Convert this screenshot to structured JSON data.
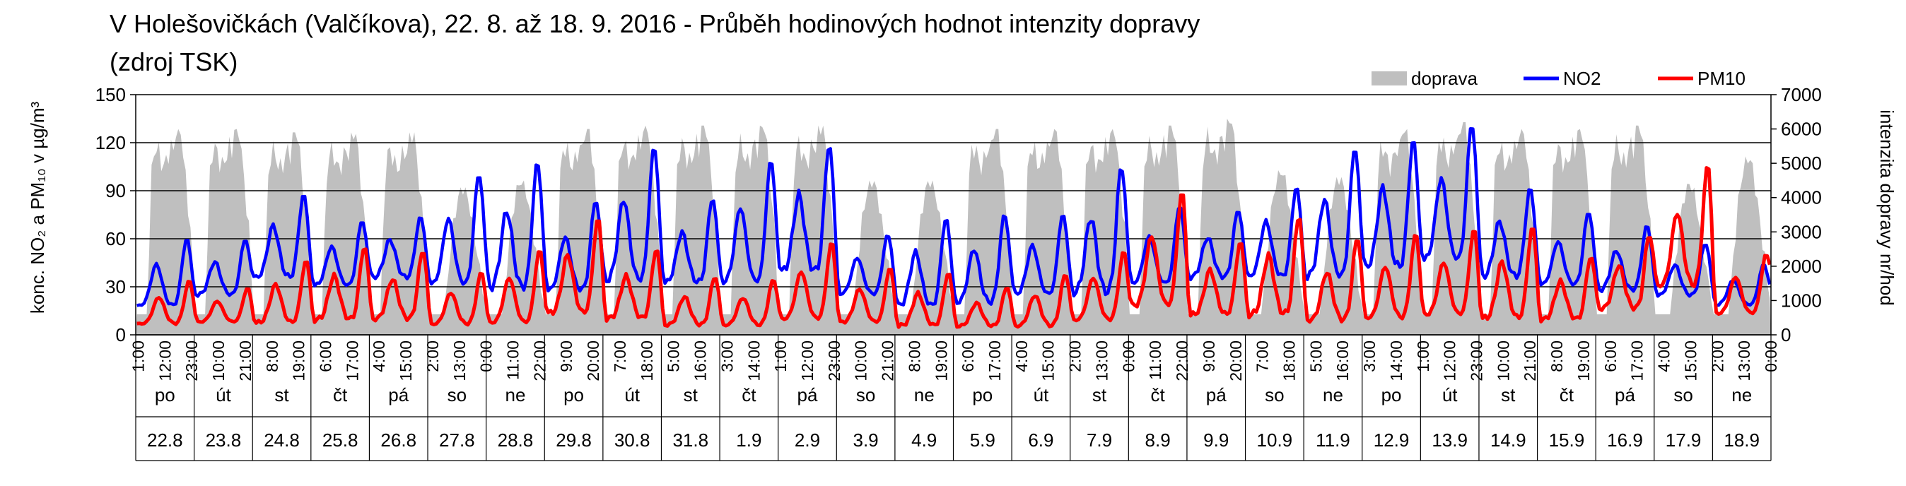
{
  "chart_data": {
    "type": "line",
    "title_line_1": "V Holešovičkách  (Valčíkova), 22. 8. až 18. 9. 2016 - Průběh hodinových hodnot intenzity dopravy",
    "title_line_2": "(zdroj TSK)",
    "ylabel_left": "konc. NO₂ a PM₁₀ v µg/m³",
    "ylabel_right": "intenzita dopravy nr/hod",
    "ylim_left": [
      0,
      150
    ],
    "yticks_left": [
      0,
      30,
      60,
      90,
      120,
      150
    ],
    "ylim_right": [
      0,
      7000
    ],
    "yticks_right": [
      0,
      1000,
      2000,
      3000,
      4000,
      5000,
      6000,
      7000
    ],
    "grid": "horizontal major gridlines at left-axis ticks",
    "legend_position": "top-right",
    "legend": [
      {
        "name": "doprava",
        "color": "#bfbfbf",
        "kind": "area"
      },
      {
        "name": "NO2",
        "color": "#0000ff",
        "kind": "line"
      },
      {
        "name": "PM10",
        "color": "#ff0000",
        "kind": "line"
      }
    ],
    "hour_ticks": [
      "1:00",
      "12:00",
      "23:00",
      "10:00",
      "21:00",
      "8:00",
      "19:00",
      "6:00",
      "17:00",
      "4:00",
      "15:00",
      "2:00",
      "13:00",
      "0:00",
      "11:00",
      "22:00",
      "9:00",
      "20:00",
      "7:00",
      "18:00",
      "5:00",
      "16:00",
      "3:00",
      "14:00",
      "1:00",
      "12:00",
      "23:00",
      "10:00",
      "21:00",
      "8:00",
      "19:00",
      "6:00",
      "17:00",
      "4:00",
      "15:00",
      "2:00",
      "13:00",
      "0:00",
      "11:00",
      "22:00",
      "9:00",
      "20:00",
      "7:00",
      "18:00",
      "5:00",
      "16:00",
      "3:00",
      "14:00",
      "1:00",
      "12:00",
      "23:00",
      "10:00",
      "21:00",
      "8:00",
      "19:00",
      "6:00",
      "17:00",
      "4:00",
      "15:00",
      "2:00",
      "13:00",
      "0:00"
    ],
    "days": [
      {
        "dow": "po",
        "date": "22.8"
      },
      {
        "dow": "út",
        "date": "23.8"
      },
      {
        "dow": "st",
        "date": "24.8"
      },
      {
        "dow": "čt",
        "date": "25.8"
      },
      {
        "dow": "pá",
        "date": "26.8"
      },
      {
        "dow": "so",
        "date": "27.8"
      },
      {
        "dow": "ne",
        "date": "28.8"
      },
      {
        "dow": "po",
        "date": "29.8"
      },
      {
        "dow": "út",
        "date": "30.8"
      },
      {
        "dow": "st",
        "date": "31.8"
      },
      {
        "dow": "čt",
        "date": "1.9"
      },
      {
        "dow": "pá",
        "date": "2.9"
      },
      {
        "dow": "so",
        "date": "3.9"
      },
      {
        "dow": "ne",
        "date": "4.9"
      },
      {
        "dow": "po",
        "date": "5.9"
      },
      {
        "dow": "út",
        "date": "6.9"
      },
      {
        "dow": "st",
        "date": "7.9"
      },
      {
        "dow": "čt",
        "date": "8.9"
      },
      {
        "dow": "pá",
        "date": "9.9"
      },
      {
        "dow": "so",
        "date": "10.9"
      },
      {
        "dow": "ne",
        "date": "11.9"
      },
      {
        "dow": "po",
        "date": "12.9"
      },
      {
        "dow": "út",
        "date": "13.9"
      },
      {
        "dow": "st",
        "date": "14.9"
      },
      {
        "dow": "čt",
        "date": "15.9"
      },
      {
        "dow": "pá",
        "date": "16.9"
      },
      {
        "dow": "so",
        "date": "17.9"
      },
      {
        "dow": "ne",
        "date": "18.9"
      }
    ],
    "series_daily": [
      {
        "name": "doprava",
        "axis": "right",
        "unit": "nr/hod",
        "daily_peak": [
          6000,
          6000,
          5900,
          5900,
          5900,
          4300,
          4500,
          6000,
          6100,
          6100,
          6100,
          6100,
          4500,
          4500,
          6000,
          6000,
          6000,
          6100,
          6300,
          4800,
          4600,
          6000,
          6200,
          6000,
          6000,
          6100,
          4400,
          5200
        ],
        "night_minimum": 600
      },
      {
        "name": "NO2",
        "axis": "left",
        "unit": "µg/m³",
        "daily_peak": [
          62,
          60,
          91,
          72,
          76,
          101,
          111,
          84,
          120,
          86,
          112,
          121,
          64,
          75,
          77,
          77,
          106,
          82,
          78,
          95,
          118,
          127,
          133,
          95,
          77,
          70,
          57,
          45
        ],
        "daily_min": [
          12,
          20,
          28,
          25,
          30,
          22,
          18,
          20,
          22,
          25,
          22,
          28,
          20,
          10,
          12,
          18,
          15,
          25,
          30,
          28,
          25,
          30,
          35,
          28,
          25,
          22,
          20,
          15
        ]
      },
      {
        "name": "PM10",
        "axis": "left",
        "unit": "µg/m³",
        "daily_peak": [
          35,
          30,
          48,
          56,
          52,
          40,
          55,
          75,
          55,
          36,
          35,
          60,
          43,
          40,
          30,
          38,
          54,
          92,
          60,
          75,
          60,
          65,
          68,
          70,
          50,
          62,
          108,
          52
        ],
        "daily_min": [
          3,
          5,
          2,
          3,
          4,
          2,
          1,
          5,
          4,
          2,
          2,
          3,
          3,
          1,
          2,
          1,
          3,
          8,
          6,
          4,
          2,
          3,
          5,
          2,
          4,
          10,
          20,
          8
        ]
      }
    ]
  }
}
